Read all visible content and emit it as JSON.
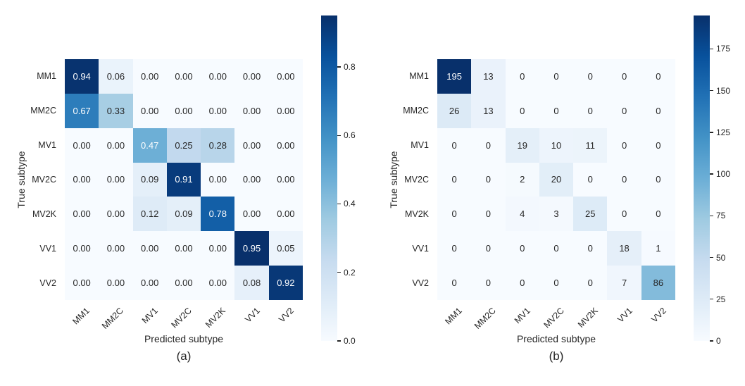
{
  "chart_data": [
    {
      "type": "heatmap",
      "caption": "(a)",
      "xlabel": "Predicted subtype",
      "ylabel": "True subtype",
      "x_categories": [
        "MM1",
        "MM2C",
        "MV1",
        "MV2C",
        "MV2K",
        "VV1",
        "VV2"
      ],
      "y_categories": [
        "MM1",
        "MM2C",
        "MV1",
        "MV2C",
        "MV2K",
        "VV1",
        "VV2"
      ],
      "values": [
        [
          0.94,
          0.06,
          0.0,
          0.0,
          0.0,
          0.0,
          0.0
        ],
        [
          0.67,
          0.33,
          0.0,
          0.0,
          0.0,
          0.0,
          0.0
        ],
        [
          0.0,
          0.0,
          0.47,
          0.25,
          0.28,
          0.0,
          0.0
        ],
        [
          0.0,
          0.0,
          0.09,
          0.91,
          0.0,
          0.0,
          0.0
        ],
        [
          0.0,
          0.0,
          0.12,
          0.09,
          0.78,
          0.0,
          0.0
        ],
        [
          0.0,
          0.0,
          0.0,
          0.0,
          0.0,
          0.95,
          0.05
        ],
        [
          0.0,
          0.0,
          0.0,
          0.0,
          0.0,
          0.08,
          0.92
        ]
      ],
      "decimals": 2,
      "vmin": 0,
      "vmax": 0.95,
      "colormap": "Blues",
      "legend_position": "right-colorbar",
      "colorbar_ticks": [
        0.0,
        0.2,
        0.4,
        0.6,
        0.8
      ],
      "colorbar_tick_labels": [
        "0.0",
        "0.2",
        "0.4",
        "0.6",
        "0.8"
      ],
      "grid": false
    },
    {
      "type": "heatmap",
      "caption": "(b)",
      "xlabel": "Predicted subtype",
      "ylabel": "True subtype",
      "x_categories": [
        "MM1",
        "MM2C",
        "MV1",
        "MV2C",
        "MV2K",
        "VV1",
        "VV2"
      ],
      "y_categories": [
        "MM1",
        "MM2C",
        "MV1",
        "MV2C",
        "MV2K",
        "VV1",
        "VV2"
      ],
      "values": [
        [
          195,
          13,
          0,
          0,
          0,
          0,
          0
        ],
        [
          26,
          13,
          0,
          0,
          0,
          0,
          0
        ],
        [
          0,
          0,
          19,
          10,
          11,
          0,
          0
        ],
        [
          0,
          0,
          2,
          20,
          0,
          0,
          0
        ],
        [
          0,
          0,
          4,
          3,
          25,
          0,
          0
        ],
        [
          0,
          0,
          0,
          0,
          0,
          18,
          1
        ],
        [
          0,
          0,
          0,
          0,
          0,
          7,
          86
        ]
      ],
      "decimals": 0,
      "vmin": 0,
      "vmax": 195,
      "colormap": "Blues",
      "legend_position": "right-colorbar",
      "colorbar_ticks": [
        0,
        25,
        50,
        75,
        100,
        125,
        150,
        175
      ],
      "colorbar_tick_labels": [
        "0",
        "25",
        "50",
        "75",
        "100",
        "125",
        "150",
        "175"
      ],
      "grid": false
    }
  ],
  "colors": {
    "colormap_anchors": [
      "#f7fbff",
      "#deebf7",
      "#c6dbef",
      "#9ecae1",
      "#6baed6",
      "#4292c6",
      "#2171b5",
      "#08519c",
      "#08306b"
    ],
    "annotation_dark": "#262626",
    "annotation_light": "#ffffff",
    "tick_label": "#262626",
    "background": "#ffffff"
  }
}
